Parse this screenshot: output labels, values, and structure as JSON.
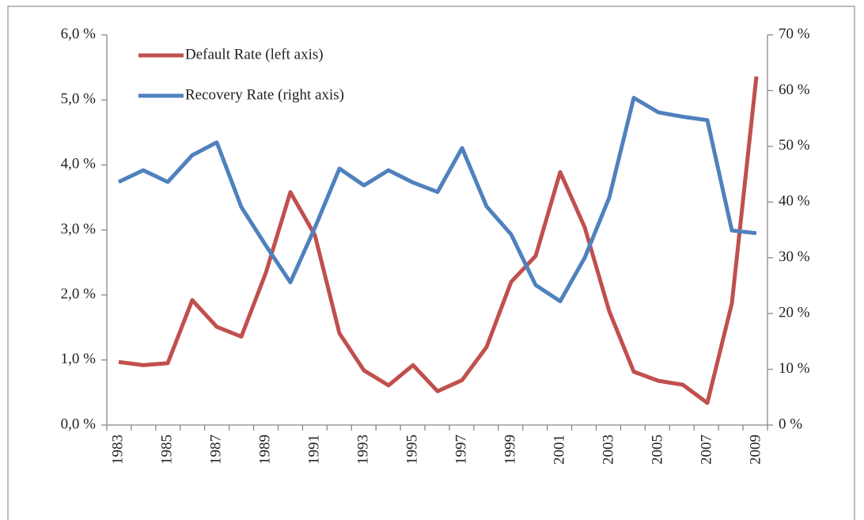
{
  "chart_data": {
    "type": "line",
    "categories": [
      "1983",
      null,
      "1985",
      null,
      "1987",
      null,
      "1989",
      null,
      "1991",
      null,
      "1993",
      null,
      "1995",
      null,
      "1997",
      null,
      "1999",
      null,
      "2001",
      null,
      "2003",
      null,
      "2005",
      null,
      "2007",
      null,
      "2009"
    ],
    "series": [
      {
        "name": "Default Rate (left axis)",
        "color": "#c0504d",
        "axis": "y",
        "values": [
          0.97,
          0.92,
          0.95,
          1.92,
          1.51,
          1.36,
          2.34,
          3.58,
          2.92,
          1.41,
          0.84,
          0.61,
          0.92,
          0.52,
          0.69,
          1.2,
          2.2,
          2.6,
          3.89,
          3.04,
          1.75,
          0.82,
          0.68,
          0.62,
          0.34,
          1.87,
          5.36
        ]
      },
      {
        "name": "Recovery Rate (right axis)",
        "color": "#4f81bd",
        "axis": "y2",
        "values": [
          43.6,
          45.7,
          43.6,
          48.4,
          50.7,
          39.1,
          32.2,
          25.6,
          35.4,
          46.0,
          43.0,
          45.7,
          43.5,
          41.8,
          49.7,
          39.2,
          34.2,
          25.1,
          22.2,
          30.0,
          40.8,
          58.7,
          56.1,
          55.3,
          54.7,
          34.9,
          34.4
        ]
      }
    ],
    "ylim": [
      0,
      6
    ],
    "yticks": [
      {
        "value": 0,
        "label": "0,0 %"
      },
      {
        "value": 1,
        "label": "1,0 %"
      },
      {
        "value": 2,
        "label": "2,0 %"
      },
      {
        "value": 3,
        "label": "3,0 %"
      },
      {
        "value": 4,
        "label": "4,0 %"
      },
      {
        "value": 5,
        "label": "5,0 %"
      },
      {
        "value": 6,
        "label": "6,0 %"
      }
    ],
    "y2lim": [
      0,
      70
    ],
    "y2ticks": [
      {
        "value": 0,
        "label": "0 %"
      },
      {
        "value": 10,
        "label": "10 %"
      },
      {
        "value": 20,
        "label": "20 %"
      },
      {
        "value": 30,
        "label": "30 %"
      },
      {
        "value": 40,
        "label": "40 %"
      },
      {
        "value": 50,
        "label": "50 %"
      },
      {
        "value": 60,
        "label": "60 %"
      },
      {
        "value": 70,
        "label": "70 %"
      }
    ],
    "legend": "top-left"
  }
}
